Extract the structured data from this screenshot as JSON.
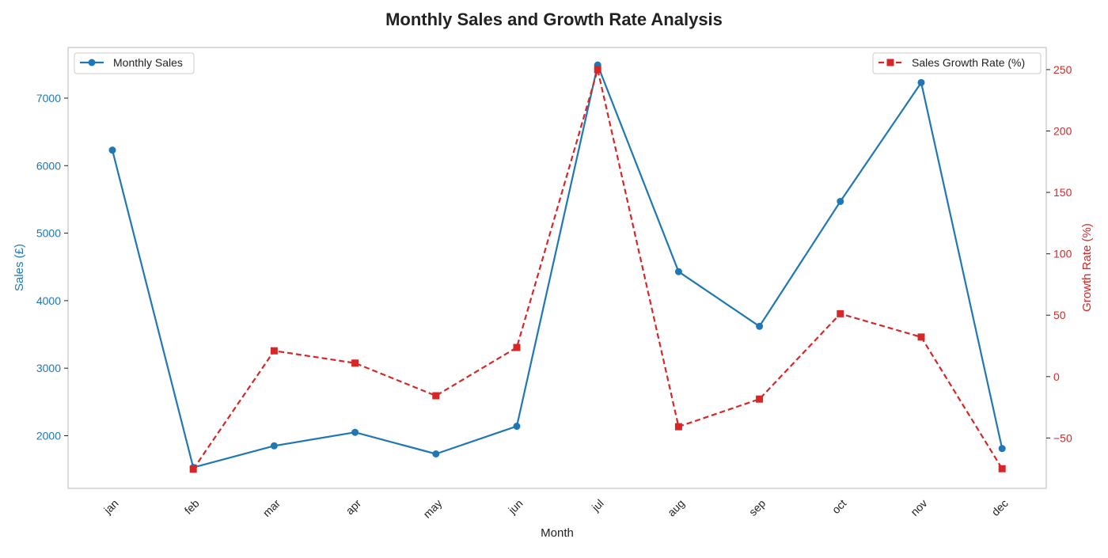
{
  "chart_data": {
    "type": "line",
    "title": "Monthly Sales and Growth Rate Analysis",
    "xlabel": "Month",
    "ylabel_left": "Sales (£)",
    "ylabel_right": "Growth Rate (%)",
    "categories": [
      "jan",
      "feb",
      "mar",
      "apr",
      "may",
      "jun",
      "jul",
      "aug",
      "sep",
      "oct",
      "nov",
      "dec"
    ],
    "y_left_lim": [
      1220,
      7750
    ],
    "y_left_ticks": [
      2000,
      3000,
      4000,
      5000,
      6000,
      7000
    ],
    "y_right_lim": [
      -91,
      268
    ],
    "y_right_ticks": [
      -50,
      0,
      50,
      100,
      150,
      200,
      250
    ],
    "grid": false,
    "series": [
      {
        "name": "Monthly Sales",
        "axis": "left",
        "color": "#1f77b4",
        "style": "solid",
        "marker": "circle",
        "values": [
          6230,
          1530,
          1850,
          2050,
          1730,
          2140,
          7490,
          4430,
          3620,
          5470,
          7230,
          1810
        ]
      },
      {
        "name": "Sales Growth Rate (%)",
        "axis": "right",
        "color": "#d62728",
        "style": "dashed",
        "marker": "square",
        "values": [
          null,
          -75.4,
          21.0,
          11.0,
          -15.6,
          23.7,
          250.0,
          -40.8,
          -18.3,
          51.2,
          32.2,
          -75.0
        ]
      }
    ],
    "legend_left_placement": "top-left",
    "legend_right_placement": "top-right"
  }
}
